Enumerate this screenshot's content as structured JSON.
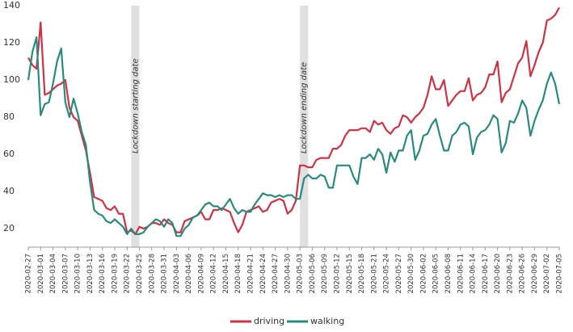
{
  "chart_data": {
    "type": "line",
    "x": [
      "2020-02-27",
      "2020-02-28",
      "2020-02-29",
      "2020-03-01",
      "2020-03-02",
      "2020-03-03",
      "2020-03-04",
      "2020-03-05",
      "2020-03-06",
      "2020-03-07",
      "2020-03-08",
      "2020-03-09",
      "2020-03-10",
      "2020-03-11",
      "2020-03-12",
      "2020-03-13",
      "2020-03-14",
      "2020-03-15",
      "2020-03-16",
      "2020-03-17",
      "2020-03-18",
      "2020-03-19",
      "2020-03-20",
      "2020-03-21",
      "2020-03-22",
      "2020-03-23",
      "2020-03-24",
      "2020-03-25",
      "2020-03-26",
      "2020-03-27",
      "2020-03-28",
      "2020-03-29",
      "2020-03-30",
      "2020-03-31",
      "2020-04-01",
      "2020-04-02",
      "2020-04-03",
      "2020-04-04",
      "2020-04-05",
      "2020-04-06",
      "2020-04-07",
      "2020-04-08",
      "2020-04-09",
      "2020-04-10",
      "2020-04-11",
      "2020-04-12",
      "2020-04-13",
      "2020-04-14",
      "2020-04-15",
      "2020-04-16",
      "2020-04-17",
      "2020-04-18",
      "2020-04-19",
      "2020-04-20",
      "2020-04-21",
      "2020-04-22",
      "2020-04-23",
      "2020-04-24",
      "2020-04-25",
      "2020-04-26",
      "2020-04-27",
      "2020-04-28",
      "2020-04-29",
      "2020-04-30",
      "2020-05-01",
      "2020-05-02",
      "2020-05-03",
      "2020-05-04",
      "2020-05-05",
      "2020-05-06",
      "2020-05-07",
      "2020-05-08",
      "2020-05-09",
      "2020-05-10",
      "2020-05-11",
      "2020-05-12",
      "2020-05-13",
      "2020-05-14",
      "2020-05-15",
      "2020-05-16",
      "2020-05-17",
      "2020-05-18",
      "2020-05-19",
      "2020-05-20",
      "2020-05-21",
      "2020-05-22",
      "2020-05-23",
      "2020-05-24",
      "2020-05-25",
      "2020-05-26",
      "2020-05-27",
      "2020-05-28",
      "2020-05-29",
      "2020-05-30",
      "2020-05-31",
      "2020-06-01",
      "2020-06-02",
      "2020-06-03",
      "2020-06-04",
      "2020-06-05",
      "2020-06-06",
      "2020-06-07",
      "2020-06-08",
      "2020-06-09",
      "2020-06-10",
      "2020-06-11",
      "2020-06-12",
      "2020-06-13",
      "2020-06-14",
      "2020-06-15",
      "2020-06-16",
      "2020-06-17",
      "2020-06-18",
      "2020-06-19",
      "2020-06-20",
      "2020-06-21",
      "2020-06-22",
      "2020-06-23",
      "2020-06-24",
      "2020-06-25",
      "2020-06-26",
      "2020-06-27",
      "2020-06-28",
      "2020-06-29",
      "2020-06-30",
      "2020-07-01",
      "2020-07-02",
      "2020-07-03",
      "2020-07-04",
      "2020-07-05"
    ],
    "xticks": [
      "2020-02-27",
      "2020-03-01",
      "2020-03-04",
      "2020-03-07",
      "2020-03-10",
      "2020-03-13",
      "2020-03-16",
      "2020-03-19",
      "2020-03-22",
      "2020-03-25",
      "2020-03-28",
      "2020-03-31",
      "2020-04-03",
      "2020-04-06",
      "2020-04-09",
      "2020-04-12",
      "2020-04-15",
      "2020-04-18",
      "2020-04-21",
      "2020-04-24",
      "2020-04-27",
      "2020-04-30",
      "2020-05-03",
      "2020-05-06",
      "2020-05-09",
      "2020-05-12",
      "2020-05-15",
      "2020-05-18",
      "2020-05-21",
      "2020-05-24",
      "2020-05-27",
      "2020-05-30",
      "2020-06-02",
      "2020-06-05",
      "2020-06-08",
      "2020-06-11",
      "2020-06-14",
      "2020-06-17",
      "2020-06-20",
      "2020-06-23",
      "2020-06-26",
      "2020-06-29",
      "2020-07-02",
      "2020-07-05"
    ],
    "series": [
      {
        "name": "driving",
        "color": "#cc3344",
        "values": [
          112,
          108,
          106,
          131,
          92,
          93,
          95,
          97,
          98,
          100,
          85,
          80,
          78,
          70,
          62,
          50,
          37,
          36,
          35,
          31,
          30,
          32,
          28,
          28,
          18,
          19,
          17,
          21,
          20,
          21,
          23,
          23,
          22,
          25,
          23,
          22,
          18,
          18,
          24,
          25,
          26,
          27,
          29,
          25,
          25,
          30,
          30,
          31,
          30,
          29,
          23,
          18,
          22,
          29,
          30,
          31,
          32,
          29,
          30,
          34,
          35,
          36,
          35,
          28,
          30,
          35,
          54,
          54,
          53,
          53,
          57,
          58,
          58,
          58,
          63,
          63,
          65,
          70,
          73,
          73,
          73,
          74,
          74,
          72,
          78,
          76,
          77,
          73,
          71,
          74,
          75,
          81,
          80,
          77,
          80,
          82,
          85,
          92,
          102,
          95,
          95,
          100,
          86,
          89,
          92,
          94,
          94,
          101,
          89,
          92,
          93,
          96,
          103,
          103,
          110,
          88,
          93,
          95,
          102,
          109,
          112,
          121,
          102,
          108,
          115,
          120,
          132,
          133,
          135,
          139
        ]
      },
      {
        "name": "walking",
        "color": "#2a8a7e",
        "values": [
          100,
          115,
          123,
          81,
          87,
          88,
          98,
          110,
          117,
          88,
          80,
          90,
          82,
          72,
          65,
          45,
          30,
          28,
          27,
          24,
          23,
          25,
          23,
          21,
          17,
          20,
          17,
          17,
          18,
          21,
          23,
          25,
          24,
          21,
          25,
          23,
          16,
          16,
          20,
          22,
          26,
          27,
          30,
          33,
          34,
          32,
          32,
          30,
          33,
          36,
          31,
          28,
          30,
          29,
          29,
          33,
          36,
          39,
          38,
          38,
          37,
          38,
          37,
          38,
          38,
          36,
          36,
          47,
          49,
          47,
          47,
          49,
          48,
          42,
          42,
          54,
          54,
          54,
          54,
          48,
          44,
          58,
          58,
          60,
          57,
          63,
          60,
          50,
          61,
          56,
          62,
          62,
          70,
          73,
          57,
          62,
          70,
          71,
          76,
          79,
          70,
          62,
          62,
          70,
          72,
          76,
          77,
          75,
          60,
          69,
          72,
          73,
          76,
          81,
          79,
          61,
          66,
          78,
          77,
          82,
          89,
          85,
          70,
          78,
          84,
          89,
          98,
          104,
          98,
          87
        ]
      }
    ],
    "ylim": [
      10,
      140
    ],
    "yticks": [
      20,
      40,
      60,
      80,
      100,
      120,
      140
    ],
    "bands": [
      {
        "start": "2020-03-23",
        "end": "2020-03-25",
        "label": "Lockdown starting date"
      },
      {
        "start": "2020-05-03",
        "end": "2020-05-05",
        "label": "Lockdown ending date"
      }
    ],
    "band_color": "#e0e0e0",
    "legend": "bottom"
  }
}
